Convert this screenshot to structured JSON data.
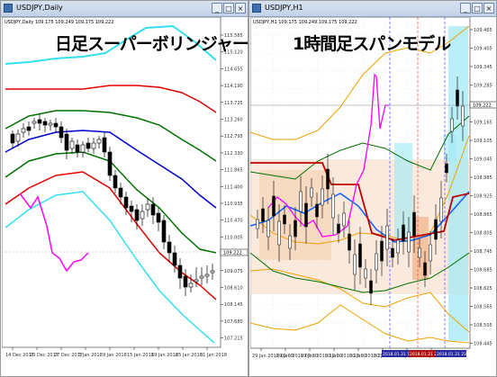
{
  "left": {
    "window_title": "USDJPY,Daily",
    "info_line": "USDJPY,Daily 109.175 109.249 109.175 109.222",
    "overlay_title": "日足スーパーボリンジャー",
    "price_labels": [
      "115.585",
      "115.120",
      "114.655",
      "114.190",
      "113.725",
      "113.260",
      "112.795",
      "112.330",
      "111.865",
      "111.400",
      "110.935",
      "110.470",
      "110.005",
      "109.540",
      "109.075",
      "108.610",
      "108.145",
      "107.680",
      "107.215"
    ],
    "current_price": "109.222",
    "date_labels": [
      "14 Dec 2017",
      "20 Dec 2017",
      "27 Dec 2017",
      "3 Jan 2018",
      "9 Jan 2018",
      "15 Jan 2018",
      "19 Jan 2018",
      "25 Jan 2018",
      "31 Jan 2018"
    ],
    "colors": {
      "upper3": "#33e0f0",
      "upper2": "#e00000",
      "upper1": "#007000",
      "middle": "#0000cc",
      "lower1": "#007000",
      "lower2": "#e00000",
      "lower3": "#33e0f0",
      "lagging": "#ff00ff"
    }
  },
  "right": {
    "window_title": "USDJPY,H1",
    "info_line": "USDJPY,H1 109.175 109.249 109.175 109.222",
    "overlay_title": "1時間足スパンモデル",
    "price_labels": [
      "109.465",
      "109.405",
      "109.345",
      "109.285",
      "109.225",
      "109.165",
      "109.105",
      "109.045",
      "108.985",
      "108.925",
      "108.865",
      "108.805",
      "108.745",
      "108.685",
      "108.625",
      "108.565",
      "108.505",
      "108.445"
    ],
    "current_price": "109.222",
    "date_labels": [
      "29 Jan 2018",
      "29 Jan 2018",
      "29 Jan 2018",
      "30 Jan 2018",
      "30 Jan 2018",
      "30 Jan 2018",
      "31 Jan 2018",
      "31 Jan 2018"
    ],
    "time_labels": [
      "02:00",
      "07:00",
      "12:00",
      "17:00",
      "22:00",
      "03:00",
      "08:00",
      "13:00"
    ],
    "session_labels": [
      "2018.01.31 16:00",
      "2018.01.31 21:00",
      "2018.01.31 23:00"
    ],
    "colors": {
      "bands": "#f0a000",
      "inner": "#007000",
      "span_a": "#1060ff",
      "span_b": "#c00000",
      "lagging": "#ff00ff",
      "cloud": "#f7dcc6",
      "highlight": "#9ee8f5"
    }
  }
}
